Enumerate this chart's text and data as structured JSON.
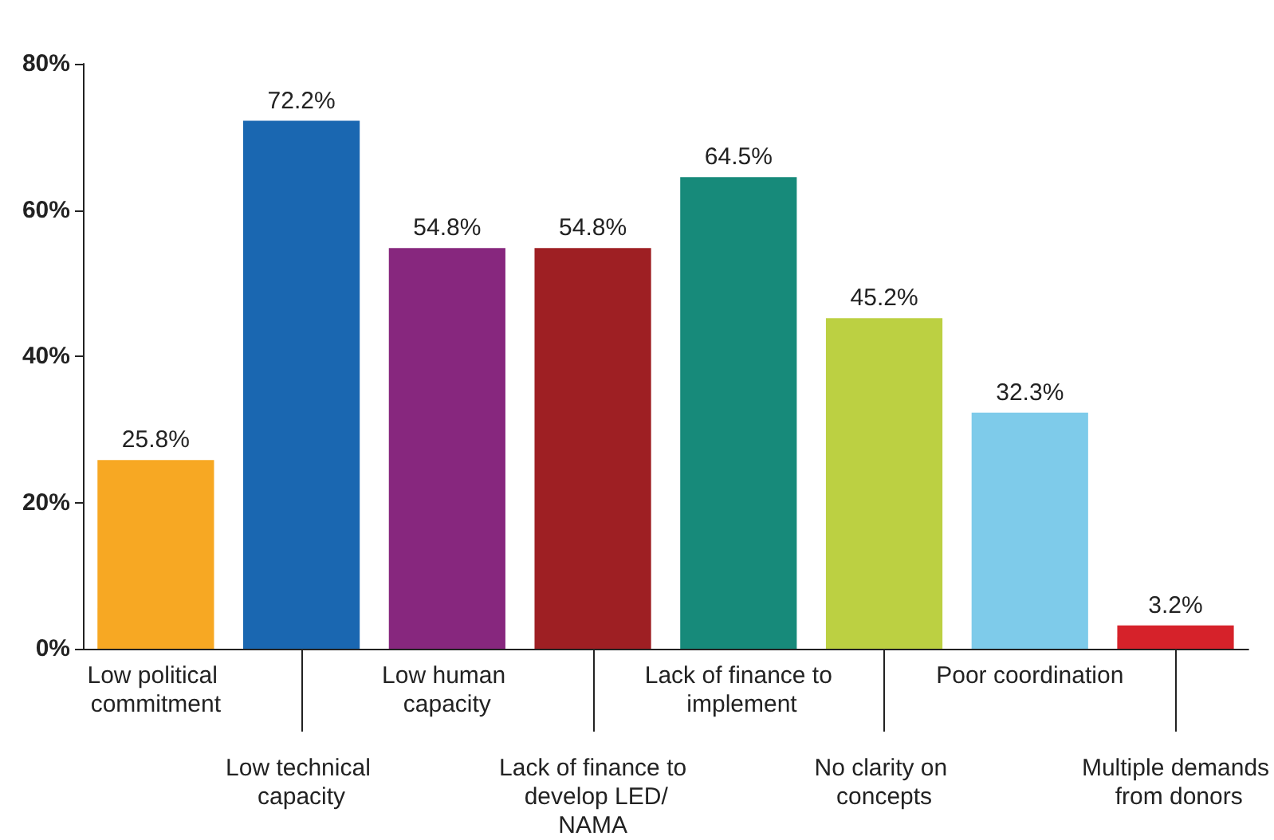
{
  "chart_data": {
    "type": "bar",
    "categories": [
      "Low political commitment",
      "Low technical capacity",
      "Low human capacity",
      "Lack of finance to develop LED/NAMA",
      "Lack of finance to implement",
      "No clarity on concepts",
      "Poor coordination",
      "Multiple demands from donors"
    ],
    "values": [
      25.8,
      72.2,
      54.8,
      54.8,
      64.5,
      45.2,
      32.3,
      3.2
    ],
    "colors": [
      "#f7a823",
      "#1a67b1",
      "#87277e",
      "#9e1f23",
      "#178a7a",
      "#bcd042",
      "#7ecbea",
      "#d6222a"
    ],
    "value_labels": [
      "25.8%",
      "72.2%",
      "54.8%",
      "54.8%",
      "64.5%",
      "45.2%",
      "32.3%",
      "3.2%"
    ],
    "ylim": [
      0,
      80
    ],
    "yticks": [
      {
        "value": 0,
        "label": "0%"
      },
      {
        "value": 20,
        "label": "20%"
      },
      {
        "value": 40,
        "label": "40%"
      },
      {
        "value": 60,
        "label": "60%"
      },
      {
        "value": 80,
        "label": "80%"
      }
    ],
    "grid": false
  }
}
